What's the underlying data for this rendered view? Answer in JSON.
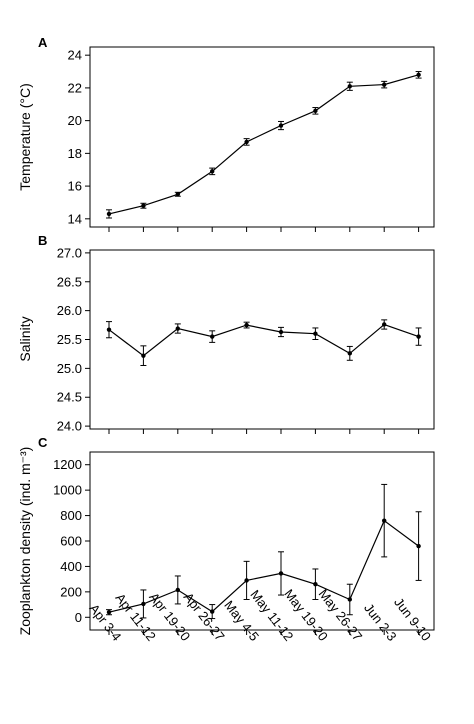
{
  "chart_data": [
    {
      "type": "line",
      "panel": "A",
      "ylabel": "Temperature (°C)",
      "ylim": [
        13.5,
        24.5
      ],
      "yticks": [
        14,
        16,
        18,
        20,
        22,
        24
      ],
      "categories": [
        "Apr 3-4",
        "Apr 11-12",
        "Apr 19-20",
        "Apr 26-27",
        "May 4-5",
        "May 11-12",
        "May 19-20",
        "May 26-27",
        "Jun 2-3",
        "Jun 9-10"
      ],
      "values": [
        14.3,
        14.8,
        15.5,
        16.9,
        18.7,
        19.7,
        20.6,
        22.1,
        22.2,
        22.8
      ],
      "errors": [
        0.25,
        0.15,
        0.12,
        0.2,
        0.2,
        0.25,
        0.2,
        0.25,
        0.2,
        0.2
      ],
      "grid": false
    },
    {
      "type": "line",
      "panel": "B",
      "ylabel": "Salinity",
      "ylim": [
        23.95,
        27.05
      ],
      "yticks": [
        24.0,
        24.5,
        25.0,
        25.5,
        26.0,
        26.5,
        27.0
      ],
      "categories": [
        "Apr 3-4",
        "Apr 11-12",
        "Apr 19-20",
        "Apr 26-27",
        "May 4-5",
        "May 11-12",
        "May 19-20",
        "May 26-27",
        "Jun 2-3",
        "Jun 9-10"
      ],
      "values": [
        25.67,
        25.22,
        25.69,
        25.55,
        25.75,
        25.63,
        25.6,
        25.26,
        25.76,
        25.55
      ],
      "errors": [
        0.14,
        0.17,
        0.08,
        0.1,
        0.05,
        0.08,
        0.1,
        0.12,
        0.08,
        0.15
      ],
      "grid": false
    },
    {
      "type": "line",
      "panel": "C",
      "ylabel": "Zooplankton density (ind. m⁻³)",
      "ylim": [
        -100,
        1300
      ],
      "yticks": [
        0,
        200,
        400,
        600,
        800,
        1000,
        1200
      ],
      "categories": [
        "Apr 3-4",
        "Apr 11-12",
        "Apr 19-20",
        "Apr 26-27",
        "May 4-5",
        "May 11-12",
        "May 19-20",
        "May 26-27",
        "Jun 2-3",
        "Jun 9-10"
      ],
      "values": [
        40,
        105,
        215,
        45,
        290,
        345,
        260,
        140,
        760,
        560
      ],
      "errors": [
        20,
        110,
        110,
        55,
        150,
        170,
        120,
        120,
        285,
        270
      ],
      "grid": false
    }
  ]
}
